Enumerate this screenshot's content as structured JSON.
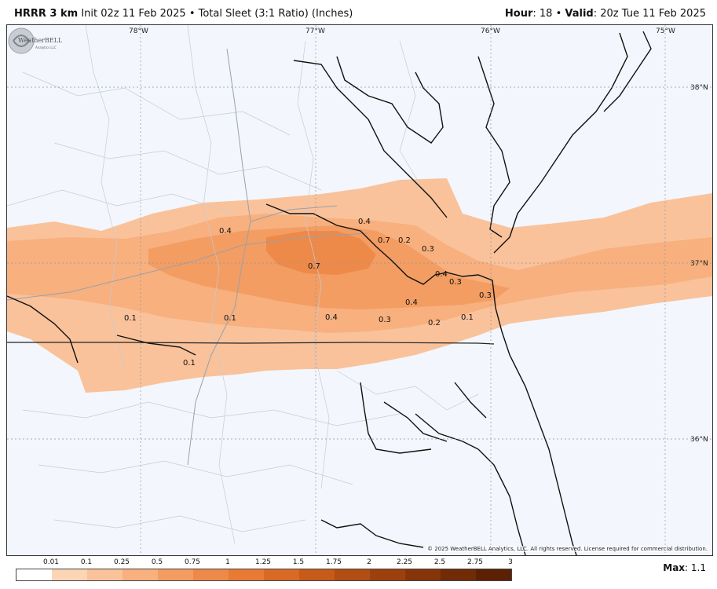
{
  "header": {
    "model": "HRRR 3 km",
    "init": "Init 02z 11 Feb 2025",
    "sep": "•",
    "product": "Total Sleet (3:1 Ratio) (Inches)",
    "hour_label": "Hour",
    "hour_value": ": 18",
    "valid_label": "Valid",
    "valid_value": ": 20z Tue 11 Feb 2025"
  },
  "map": {
    "lon_labels": [
      "78°W",
      "77°W",
      "76°W",
      "75°W"
    ],
    "lat_labels": [
      "38°N",
      "37°N",
      "36°N"
    ],
    "value_labels": [
      "0.4",
      "0.4",
      "0.7",
      "0.2",
      "0.3",
      "0.7",
      "0.4",
      "0.3",
      "0.3",
      "0.4",
      "0.1",
      "0.1",
      "0.4",
      "0.3",
      "0.2",
      "0.1",
      "0.1"
    ],
    "copyright": "© 2025 WeatherBELL Analytics, LLC. All rights reserved. License required for commercial distribution.",
    "logo_text": "WeatherBELL",
    "logo_sub": "Analytics LLC"
  },
  "legend": {
    "ticks": [
      "0.01",
      "0.1",
      "0.25",
      "0.5",
      "0.75",
      "1",
      "1.25",
      "1.5",
      "1.75",
      "2",
      "2.25",
      "2.5",
      "2.75",
      "3"
    ],
    "colors": [
      "#ffffff",
      "#fcd5b5",
      "#f9c29a",
      "#f7b07e",
      "#f39d62",
      "#ee8a49",
      "#e87a35",
      "#d96a25",
      "#c75b1a",
      "#b24d13",
      "#9c410e",
      "#86350a",
      "#712b07",
      "#5c2104"
    ]
  },
  "max": {
    "label": "Max",
    "value": ": 1.1"
  }
}
